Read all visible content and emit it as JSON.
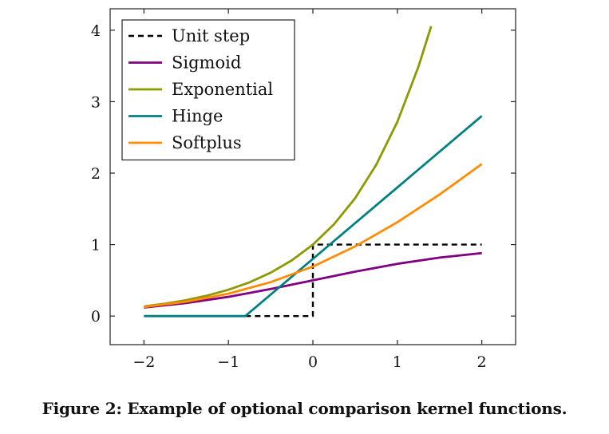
{
  "caption": "Figure 2: Example of optional comparison kernel functions.",
  "chart_data": {
    "type": "line",
    "xlim": [
      -2.4,
      2.4
    ],
    "ylim": [
      -0.4,
      4.3
    ],
    "xticks": [
      -2,
      -1,
      0,
      1,
      2
    ],
    "xtick_labels": [
      "−2",
      "−1",
      "0",
      "1",
      "2"
    ],
    "yticks": [
      0,
      1,
      2,
      3,
      4
    ],
    "ytick_labels": [
      "0",
      "1",
      "2",
      "3",
      "4"
    ],
    "grid": false,
    "legend_position": "top-left",
    "series": [
      {
        "name": "Unit step",
        "color": "#000000",
        "dashed": true,
        "points": [
          [
            -0.8,
            0
          ],
          [
            0,
            0
          ],
          [
            0,
            1
          ],
          [
            2,
            1
          ]
        ]
      },
      {
        "name": "Sigmoid",
        "color": "#800080",
        "dashed": false,
        "points": [
          [
            -2,
            0.119
          ],
          [
            -1.5,
            0.182
          ],
          [
            -1,
            0.269
          ],
          [
            -0.5,
            0.378
          ],
          [
            0,
            0.5
          ],
          [
            0.5,
            0.622
          ],
          [
            1,
            0.731
          ],
          [
            1.5,
            0.818
          ],
          [
            2,
            0.881
          ]
        ]
      },
      {
        "name": "Exponential",
        "color": "#8c9a00",
        "dashed": false,
        "points": [
          [
            -2,
            0.135
          ],
          [
            -1.75,
            0.174
          ],
          [
            -1.5,
            0.223
          ],
          [
            -1.25,
            0.287
          ],
          [
            -1,
            0.368
          ],
          [
            -0.75,
            0.472
          ],
          [
            -0.5,
            0.607
          ],
          [
            -0.25,
            0.779
          ],
          [
            0,
            1
          ],
          [
            0.25,
            1.284
          ],
          [
            0.5,
            1.649
          ],
          [
            0.75,
            2.117
          ],
          [
            1,
            2.718
          ],
          [
            1.25,
            3.49
          ],
          [
            1.4,
            4.055
          ]
        ]
      },
      {
        "name": "Hinge",
        "color": "#008080",
        "dashed": false,
        "points": [
          [
            -2,
            0
          ],
          [
            -0.8,
            0
          ],
          [
            2,
            2.8
          ]
        ]
      },
      {
        "name": "Softplus",
        "color": "#ff8c00",
        "dashed": false,
        "points": [
          [
            -2,
            0.127
          ],
          [
            -1.5,
            0.201
          ],
          [
            -1,
            0.313
          ],
          [
            -0.5,
            0.474
          ],
          [
            0,
            0.693
          ],
          [
            0.5,
            0.974
          ],
          [
            1,
            1.313
          ],
          [
            1.5,
            1.701
          ],
          [
            2,
            2.127
          ]
        ]
      }
    ]
  }
}
